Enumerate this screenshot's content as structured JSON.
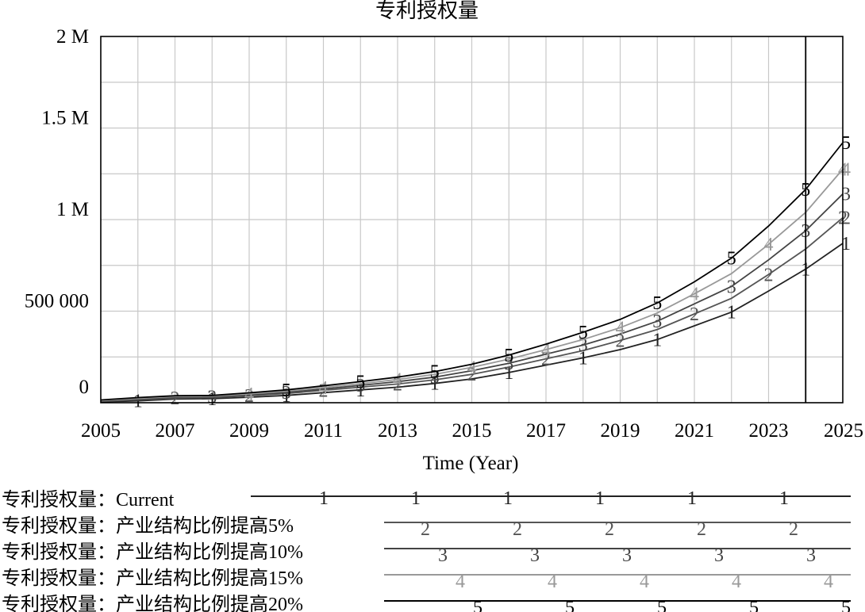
{
  "chart_data": {
    "type": "line",
    "title": "专利授权量",
    "xlabel": "Time (Year)",
    "ylabel": "",
    "xlim": [
      2005,
      2025
    ],
    "ylim": [
      0,
      2000000
    ],
    "x_ticks": [
      "2005",
      "2007",
      "2009",
      "2011",
      "2013",
      "2015",
      "2017",
      "2019",
      "2021",
      "2023",
      "2025"
    ],
    "y_ticks": [
      {
        "value": 0,
        "label": "0"
      },
      {
        "value": 500000,
        "label": "500 000"
      },
      {
        "value": 1000000,
        "label": "1 M"
      },
      {
        "value": 1500000,
        "label": "1.5 M"
      },
      {
        "value": 2000000,
        "label": "2 M"
      }
    ],
    "vertical_marker_x": 2024,
    "x": [
      2005,
      2006,
      2007,
      2008,
      2009,
      2010,
      2011,
      2012,
      2013,
      2014,
      2015,
      2016,
      2017,
      2018,
      2019,
      2020,
      2021,
      2022,
      2023,
      2024,
      2025
    ],
    "series": [
      {
        "name": "专利授权量：Current",
        "marker": "1",
        "color": "#222222",
        "values": [
          5000,
          10000,
          20000,
          22000,
          30000,
          40000,
          55000,
          70000,
          85000,
          105000,
          130000,
          165000,
          205000,
          245000,
          290000,
          345000,
          420000,
          495000,
          610000,
          730000,
          870000
        ]
      },
      {
        "name": "专利授权量：产业结构比例提高5%",
        "marker": "2",
        "color": "#555555",
        "values": [
          8000,
          16000,
          25000,
          28000,
          38000,
          50000,
          68000,
          85000,
          102000,
          125000,
          155000,
          195000,
          240000,
          285000,
          340000,
          400000,
          485000,
          570000,
          700000,
          840000,
          1010000
        ]
      },
      {
        "name": "专利授权量：产业结构比例提高10%",
        "marker": "3",
        "color": "#444444",
        "values": [
          10000,
          20000,
          30000,
          32000,
          43000,
          57000,
          75000,
          95000,
          115000,
          140000,
          175000,
          215000,
          265000,
          315000,
          375000,
          445000,
          540000,
          635000,
          780000,
          940000,
          1140000
        ]
      },
      {
        "name": "专利授权量：产业结构比例提高15%",
        "marker": "4",
        "color": "#999999",
        "values": [
          12000,
          24000,
          34000,
          36000,
          48000,
          63000,
          83000,
          104000,
          127000,
          155000,
          193000,
          238000,
          290000,
          345000,
          410000,
          490000,
          595000,
          705000,
          865000,
          1040000,
          1275000
        ]
      },
      {
        "name": "专利授权量：产业结构比例提高20%",
        "marker": "5",
        "color": "#000000",
        "values": [
          15000,
          28000,
          38000,
          40000,
          54000,
          70000,
          92000,
          115000,
          140000,
          170000,
          210000,
          260000,
          320000,
          385000,
          455000,
          545000,
          660000,
          790000,
          965000,
          1165000,
          1420000
        ]
      }
    ]
  }
}
